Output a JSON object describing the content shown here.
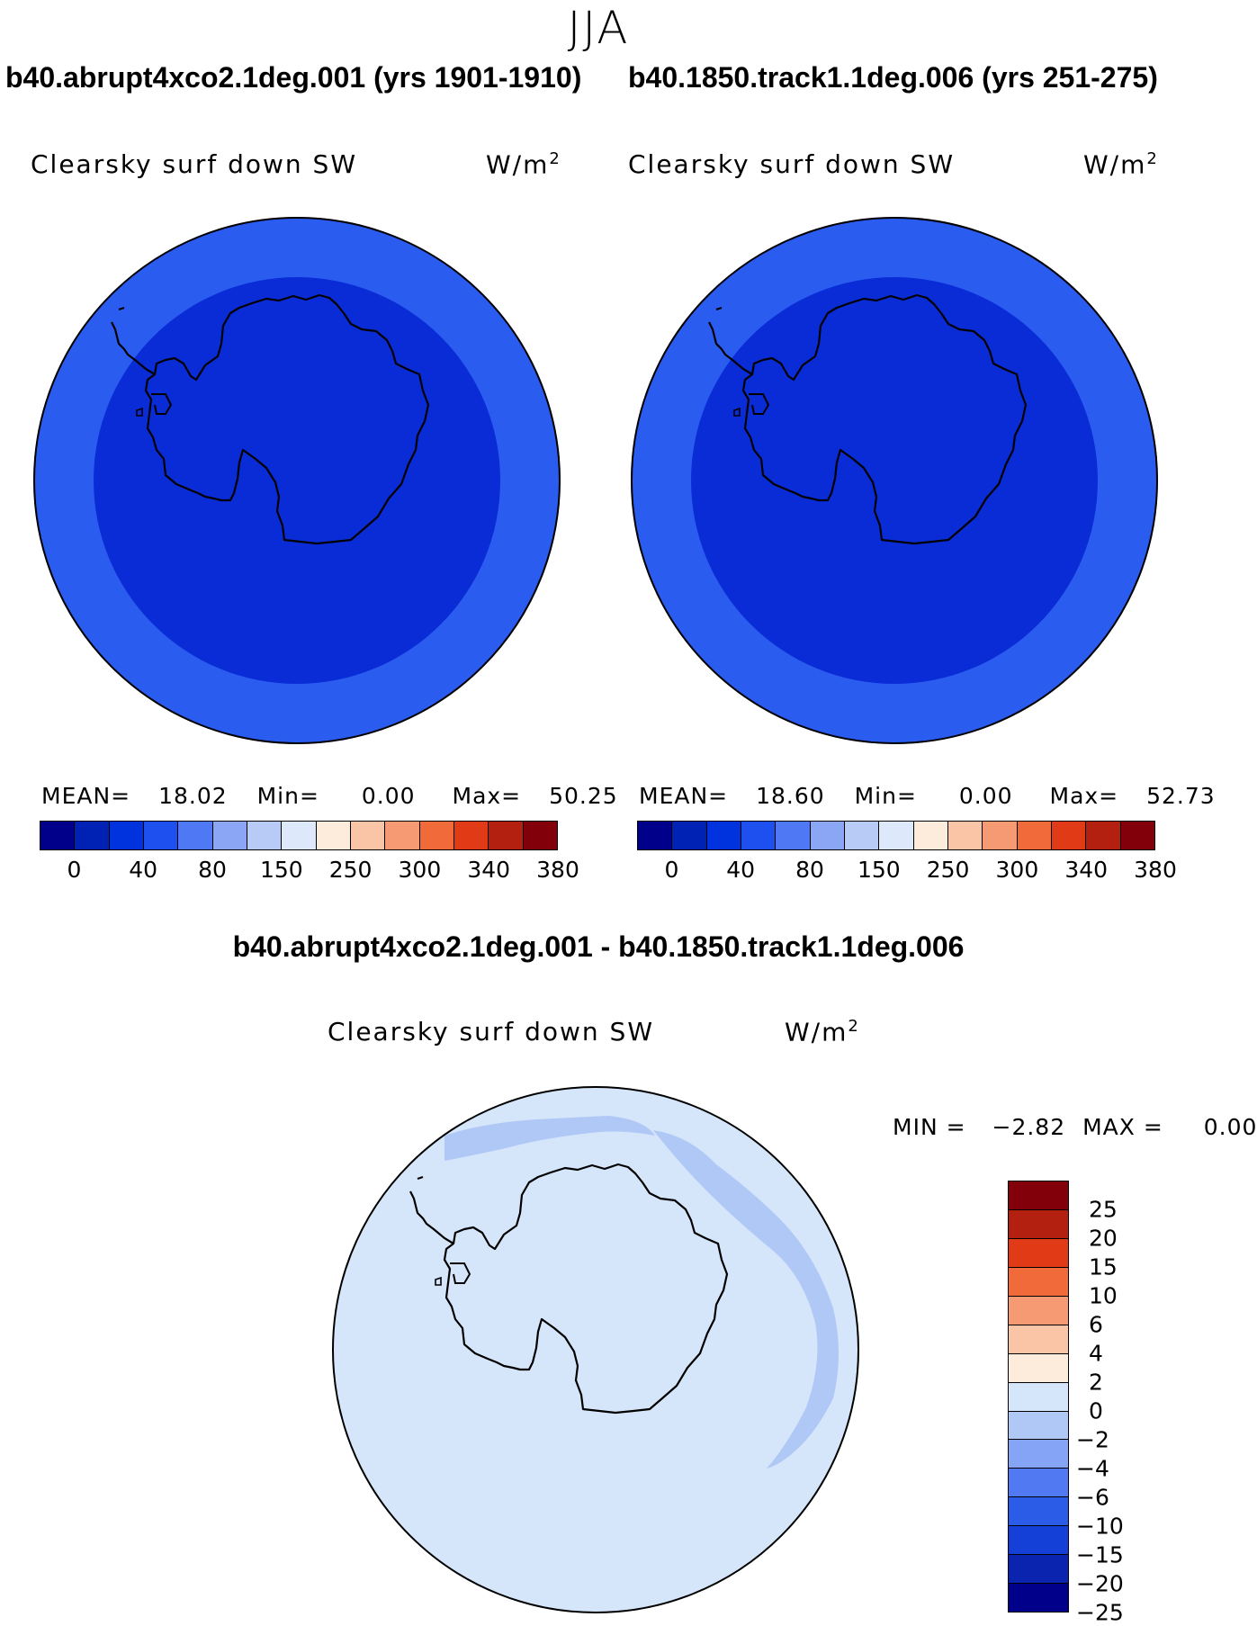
{
  "header": {
    "season": "JJA"
  },
  "panels": [
    {
      "case_title": "b40.abrupt4xco2.1deg.001 (yrs 1901-1910)",
      "variable": "Clearsky surf down SW",
      "units_base": "W/m",
      "units_exp": "2",
      "stats": {
        "mean_label": "MEAN=",
        "mean": "18.02",
        "min_label": "Min=",
        "min": "0.00",
        "max_label": "Max=",
        "max": "50.25"
      },
      "colorbar": {
        "colors": [
          "#00008b",
          "#0022b4",
          "#0033dd",
          "#1e50f0",
          "#4f78f5",
          "#8aa6f5",
          "#b7cbf6",
          "#dde9fb",
          "#fdebdc",
          "#f9c5a6",
          "#f59a72",
          "#f06a3a",
          "#e03a16",
          "#b42010",
          "#82000a"
        ],
        "labels": [
          "0",
          "40",
          "80",
          "150",
          "250",
          "300",
          "340",
          "380"
        ]
      },
      "map": {
        "outer_ring_color": "#2a5cf0",
        "inner_color": "#0a2cd6"
      }
    },
    {
      "case_title": "b40.1850.track1.1deg.006 (yrs 251-275)",
      "variable": "Clearsky surf down SW",
      "units_base": "W/m",
      "units_exp": "2",
      "stats": {
        "mean_label": "MEAN=",
        "mean": "18.60",
        "min_label": "Min=",
        "min": "0.00",
        "max_label": "Max=",
        "max": "52.73"
      },
      "colorbar": {
        "colors": [
          "#00008b",
          "#0022b4",
          "#0033dd",
          "#1e50f0",
          "#4f78f5",
          "#8aa6f5",
          "#b7cbf6",
          "#dde9fb",
          "#fdebdc",
          "#f9c5a6",
          "#f59a72",
          "#f06a3a",
          "#e03a16",
          "#b42010",
          "#82000a"
        ],
        "labels": [
          "0",
          "40",
          "80",
          "150",
          "250",
          "300",
          "340",
          "380"
        ]
      },
      "map": {
        "outer_ring_color": "#2a5cf0",
        "inner_color": "#0a2cd6"
      }
    }
  ],
  "difference": {
    "title": "b40.abrupt4xco2.1deg.001 - b40.1850.track1.1deg.006",
    "variable": "Clearsky surf down SW",
    "units_base": "W/m",
    "units_exp": "2",
    "stats": {
      "min_label": "MIN =",
      "min": "−2.82",
      "max_label": "MAX =",
      "max": "0.00"
    },
    "colorbar": {
      "colors": [
        "#82000a",
        "#b42010",
        "#e03a16",
        "#f06a3a",
        "#f59a72",
        "#f9c5a6",
        "#fdebdc",
        "#d5e5fa",
        "#b0c8f6",
        "#86a4f5",
        "#5079f2",
        "#2a5ce8",
        "#1540d8",
        "#0a24b0",
        "#00008b"
      ],
      "labels": [
        "25",
        "20",
        "15",
        "10",
        "6",
        "4",
        "2",
        "0",
        "−2",
        "−4",
        "−6",
        "−10",
        "−15",
        "−20",
        "−25"
      ]
    },
    "map": {
      "background_color": "#d5e5fa",
      "band_color": "#b0c8f6"
    }
  }
}
